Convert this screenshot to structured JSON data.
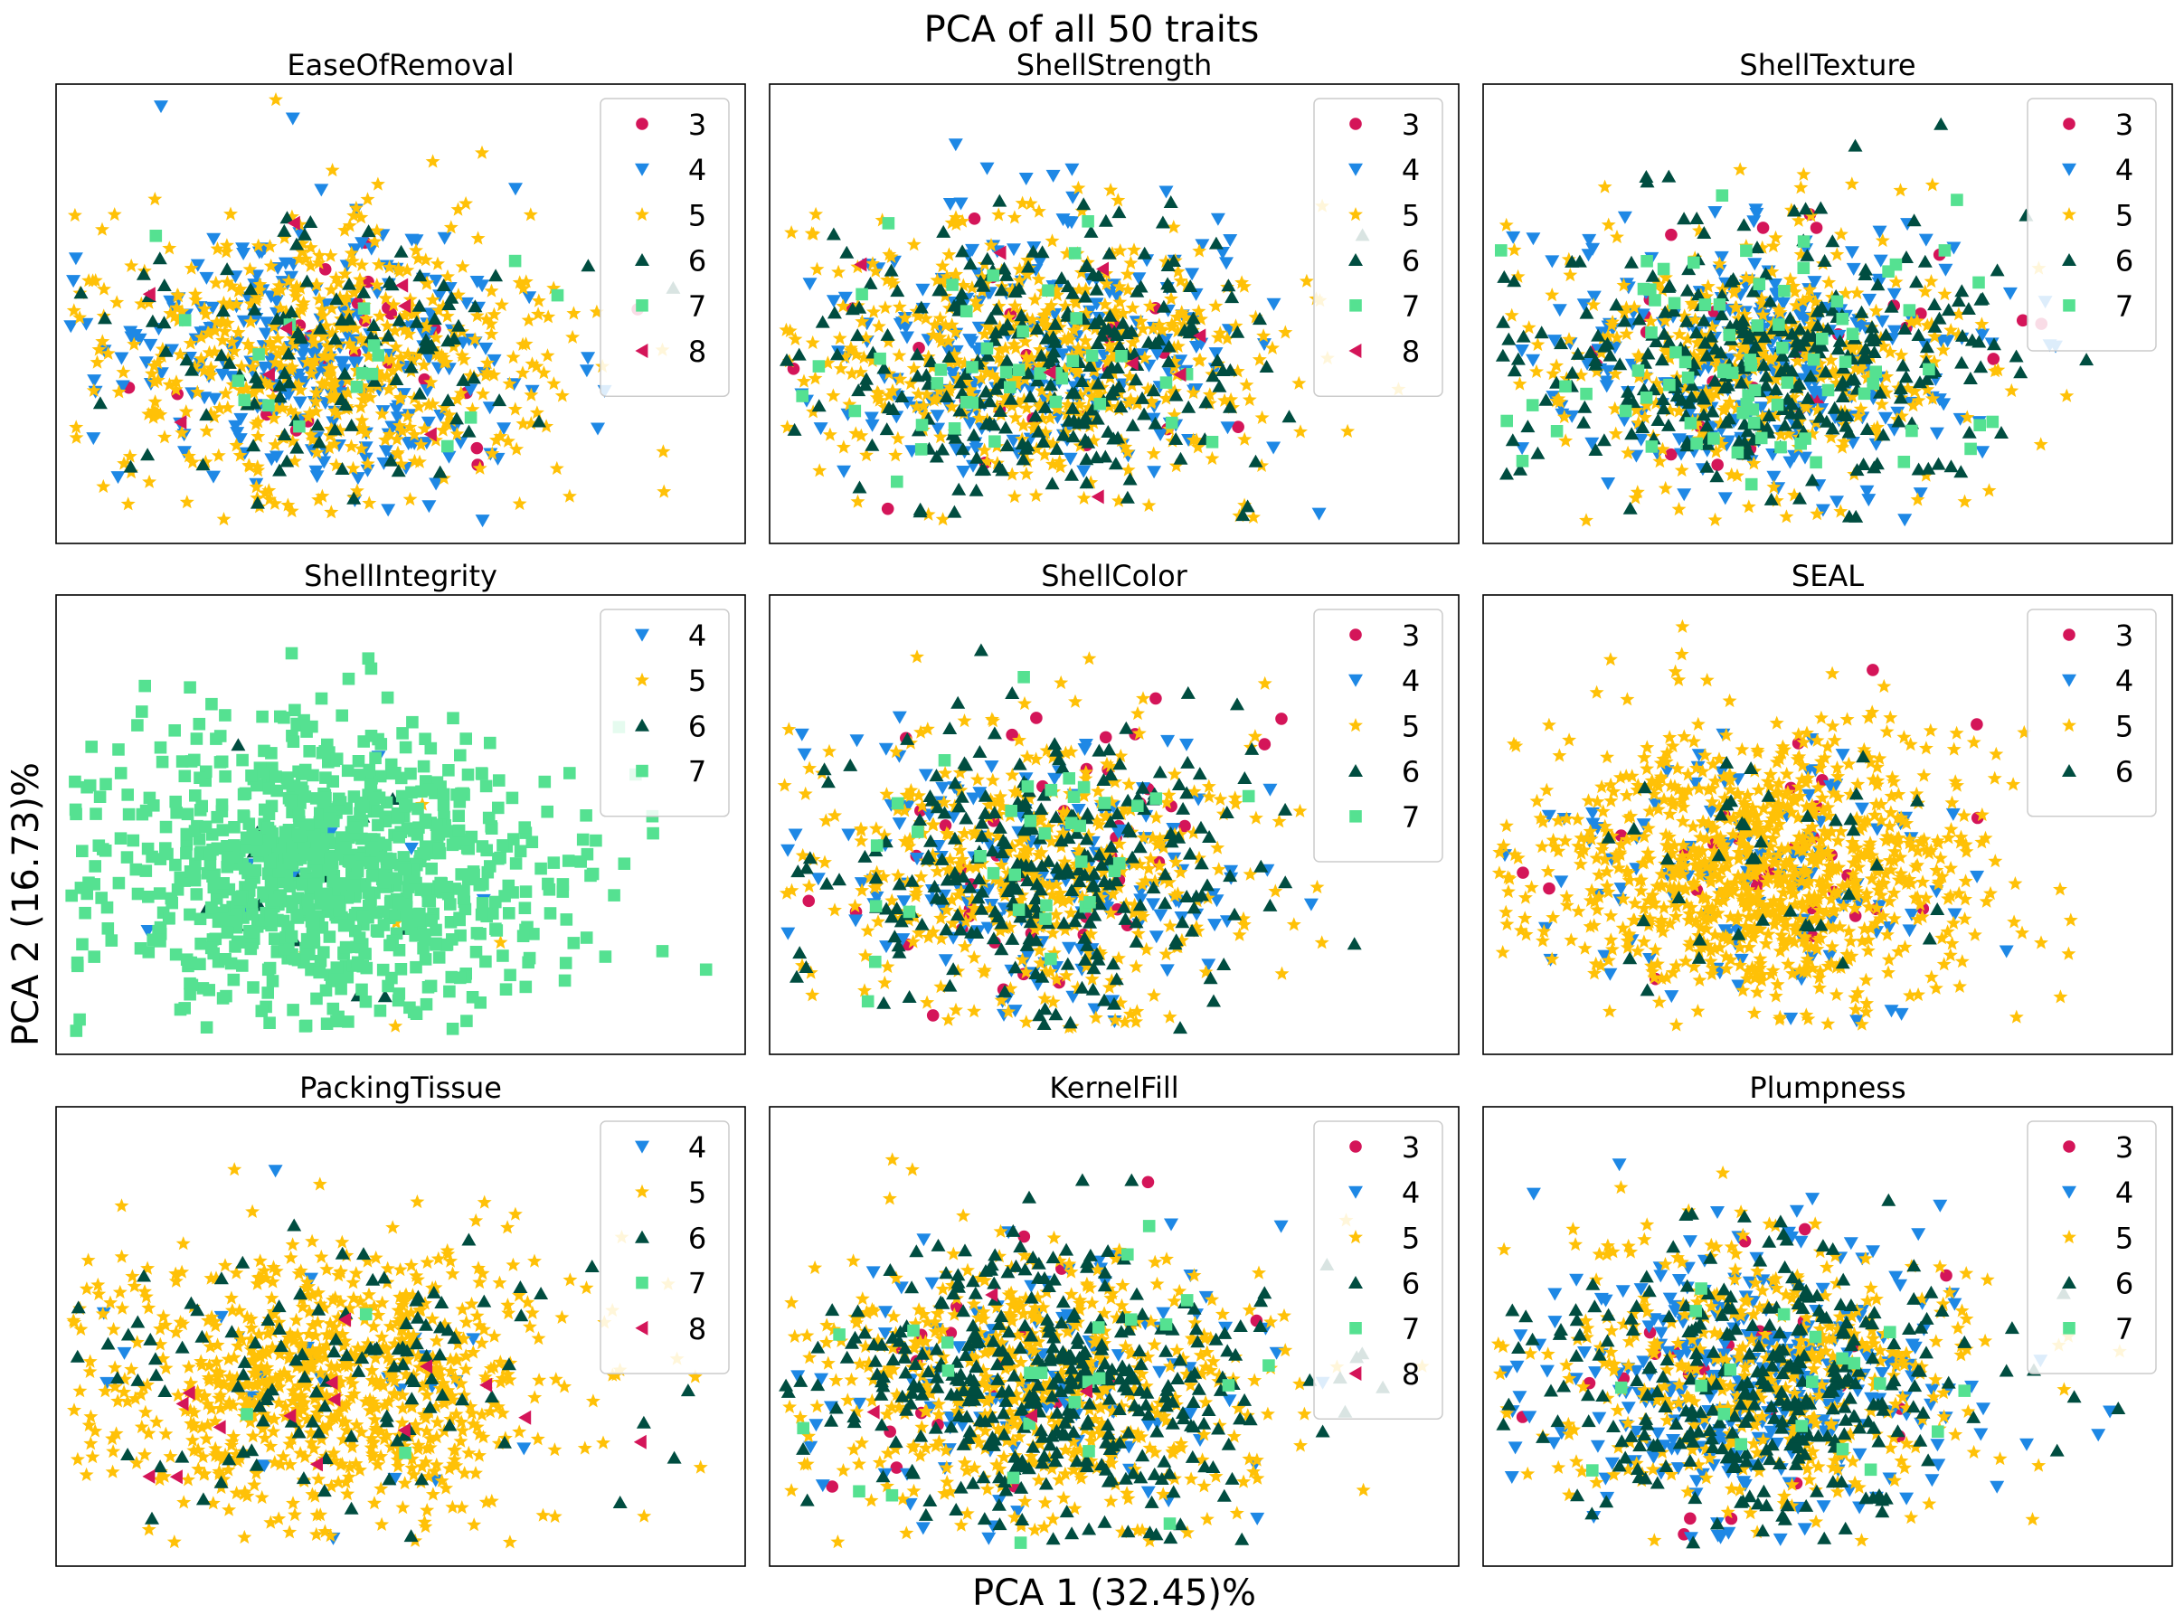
{
  "figure": {
    "title": "PCA of all 50 traits",
    "xlabel": "PCA 1 (32.45)%",
    "ylabel": "PCA 2 (16.73)%"
  },
  "palette": {
    "3": "#d41559",
    "4": "#1e88e5",
    "5": "#ffc107",
    "6": "#004d40",
    "7": "#55e191",
    "8": "#d41559"
  },
  "shapes": {
    "3": "circle",
    "4": "triangle-down",
    "5": "star",
    "6": "triangle-up",
    "7": "square",
    "8": "triangle-left"
  },
  "chart_data": [
    {
      "type": "scatter",
      "title": "EaseOfRemoval",
      "legend": [
        "3",
        "4",
        "5",
        "6",
        "7",
        "8"
      ],
      "legend_position": "top-right",
      "grid": false,
      "axes_ticks": "none"
    },
    {
      "type": "scatter",
      "title": "ShellStrength",
      "legend": [
        "3",
        "4",
        "5",
        "6",
        "7",
        "8"
      ],
      "legend_position": "top-right",
      "grid": false,
      "axes_ticks": "none"
    },
    {
      "type": "scatter",
      "title": "ShellTexture",
      "legend": [
        "3",
        "4",
        "5",
        "6",
        "7"
      ],
      "legend_position": "top-right",
      "grid": false,
      "axes_ticks": "none"
    },
    {
      "type": "scatter",
      "title": "ShellIntegrity",
      "legend": [
        "4",
        "5",
        "6",
        "7"
      ],
      "legend_position": "top-right",
      "grid": false,
      "axes_ticks": "none"
    },
    {
      "type": "scatter",
      "title": "ShellColor",
      "legend": [
        "3",
        "4",
        "5",
        "6",
        "7"
      ],
      "legend_position": "top-right",
      "grid": false,
      "axes_ticks": "none"
    },
    {
      "type": "scatter",
      "title": "SEAL",
      "legend": [
        "3",
        "4",
        "5",
        "6"
      ],
      "legend_position": "top-right",
      "grid": false,
      "axes_ticks": "none"
    },
    {
      "type": "scatter",
      "title": "PackingTissue",
      "legend": [
        "4",
        "5",
        "6",
        "7",
        "8"
      ],
      "legend_position": "top-right",
      "grid": false,
      "axes_ticks": "none"
    },
    {
      "type": "scatter",
      "title": "KernelFill",
      "legend": [
        "3",
        "4",
        "5",
        "6",
        "7",
        "8"
      ],
      "legend_position": "top-right",
      "grid": false,
      "axes_ticks": "none"
    },
    {
      "type": "scatter",
      "title": "Plumpness",
      "legend": [
        "3",
        "4",
        "5",
        "6",
        "7"
      ],
      "legend_position": "top-right",
      "grid": false,
      "axes_ticks": "none"
    }
  ]
}
